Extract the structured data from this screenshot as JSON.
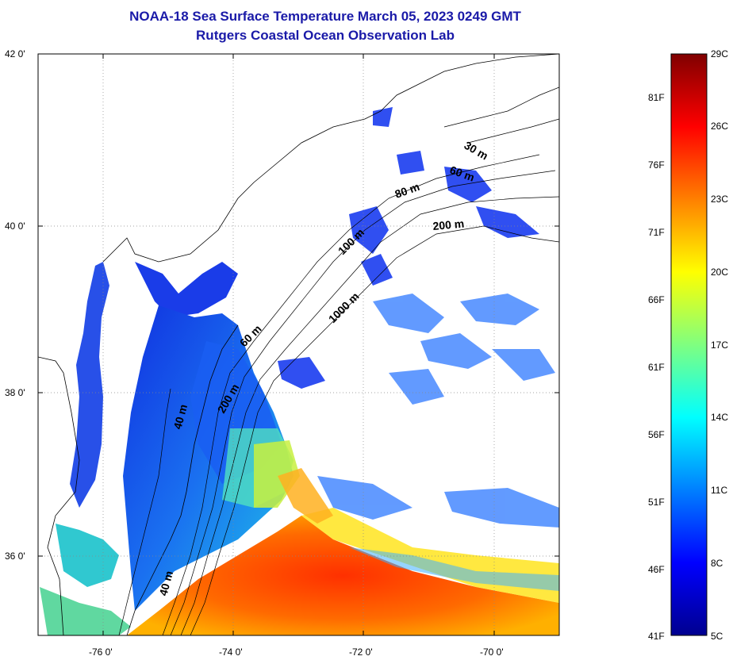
{
  "header": {
    "title": "NOAA-18 Sea Surface Temperature March 05, 2023 0249 GMT",
    "subtitle": "Rutgers Coastal Ocean Observation Lab"
  },
  "map": {
    "lat_ticks": [
      "42 0'",
      "40 0'",
      "38 0'",
      "36 0'"
    ],
    "lon_ticks": [
      "-76 0'",
      "-74 0'",
      "-72 0'",
      "-70 0'"
    ],
    "lat_range": [
      35,
      42
    ],
    "lon_range": [
      -77,
      -69
    ],
    "gridlines": "dotted",
    "contour_labels": [
      "30 m",
      "60 m",
      "80 m",
      "100 m",
      "200 m",
      "1000 m",
      "60 m",
      "200 m",
      "40 m",
      "40 m"
    ],
    "land_color": "#ffffff",
    "missing_data_color": "#ffffff"
  },
  "colorbar": {
    "celsius_labels": [
      "29C",
      "26C",
      "23C",
      "20C",
      "17C",
      "14C",
      "11C",
      "8C",
      "5C"
    ],
    "fahrenheit_labels": [
      "81F",
      "76F",
      "71F",
      "66F",
      "61F",
      "56F",
      "51F",
      "46F",
      "41F"
    ],
    "range_celsius": [
      5,
      29
    ],
    "colormap": "jet"
  }
}
